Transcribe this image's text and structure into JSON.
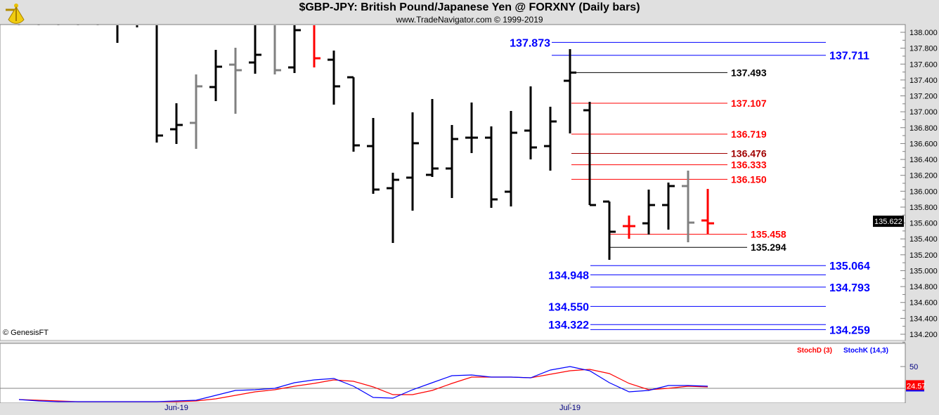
{
  "header": {
    "title": "$GBP-JPY:  British Pound/Japanese Yen @ FORXNY  (Daily bars)",
    "subtitle": "www.TradeNavigator.com © 1999-2019",
    "copyright": "© GenesisFT"
  },
  "colors": {
    "up": "#000000",
    "down": "#ff0000",
    "neutral": "#808080",
    "blue": "#0000ff",
    "red": "#ff0000",
    "darkred": "#a00000",
    "black": "#000000"
  },
  "chart_data": {
    "type": "ohlc",
    "title": "$GBP-JPY:  British Pound/Japanese Yen @ FORXNY  (Daily bars)",
    "y_axis": {
      "min": 134.2,
      "max": 138.0,
      "step": 0.2,
      "ticks": [
        "138.000",
        "137.800",
        "137.600",
        "137.400",
        "137.200",
        "137.000",
        "136.800",
        "136.600",
        "136.400",
        "136.200",
        "136.000",
        "135.800",
        "135.600",
        "135.400",
        "135.200",
        "135.000",
        "134.800",
        "134.600",
        "134.400",
        "134.200"
      ]
    },
    "x_labels": [
      {
        "label": "Jun-19",
        "bar": 8
      },
      {
        "label": "Jul-19",
        "bar": 28
      }
    ],
    "current_price": "135.622",
    "bars": [
      {
        "o": 138.1,
        "h": 138.1,
        "l": 138.09,
        "c": 138.1,
        "color": "up"
      },
      {
        "o": 138.1,
        "h": 138.1,
        "l": 138.09,
        "c": 138.1,
        "color": "up"
      },
      {
        "o": 138.1,
        "h": 138.1,
        "l": 138.09,
        "c": 138.1,
        "color": "up"
      },
      {
        "o": 138.1,
        "h": 138.1,
        "l": 138.09,
        "c": 138.1,
        "color": "up"
      },
      {
        "o": 138.1,
        "h": 138.1,
        "l": 138.09,
        "c": 138.1,
        "color": "up"
      },
      {
        "o": 138.1,
        "h": 138.1,
        "l": 137.867,
        "c": 138.1,
        "color": "up"
      },
      {
        "o": 138.1,
        "h": 138.1,
        "l": 138.062,
        "c": 138.1,
        "color": "up"
      },
      {
        "o": 138.1,
        "h": 138.1,
        "l": 136.613,
        "c": 136.701,
        "color": "up"
      },
      {
        "o": 136.78,
        "h": 137.107,
        "l": 136.595,
        "c": 136.834,
        "color": "up"
      },
      {
        "o": 136.86,
        "h": 137.47,
        "l": 136.533,
        "c": 137.32,
        "color": "neutral"
      },
      {
        "o": 137.311,
        "h": 137.779,
        "l": 137.134,
        "c": 137.567,
        "color": "up"
      },
      {
        "o": 137.593,
        "h": 137.806,
        "l": 136.975,
        "c": 137.523,
        "color": "neutral"
      },
      {
        "o": 137.62,
        "h": 138.1,
        "l": 137.479,
        "c": 137.717,
        "color": "up"
      },
      {
        "o": 138.1,
        "h": 138.1,
        "l": 137.47,
        "c": 137.523,
        "color": "neutral"
      },
      {
        "o": 137.558,
        "h": 138.1,
        "l": 137.487,
        "c": 138.027,
        "color": "up"
      },
      {
        "o": 138.1,
        "h": 138.1,
        "l": 137.558,
        "c": 137.673,
        "color": "down"
      },
      {
        "o": 137.655,
        "h": 137.77,
        "l": 137.09,
        "c": 137.32,
        "color": "up"
      },
      {
        "o": 137.434,
        "h": 137.434,
        "l": 136.498,
        "c": 136.577,
        "color": "up"
      },
      {
        "o": 136.568,
        "h": 136.922,
        "l": 135.967,
        "c": 136.021,
        "color": "up"
      },
      {
        "o": 136.038,
        "h": 136.233,
        "l": 135.349,
        "c": 136.144,
        "color": "up"
      },
      {
        "o": 136.171,
        "h": 136.993,
        "l": 135.755,
        "c": 136.604,
        "color": "up"
      },
      {
        "o": 136.206,
        "h": 137.16,
        "l": 136.18,
        "c": 136.286,
        "color": "up"
      },
      {
        "o": 136.286,
        "h": 136.834,
        "l": 135.914,
        "c": 136.657,
        "color": "up"
      },
      {
        "o": 136.674,
        "h": 137.116,
        "l": 136.48,
        "c": 136.674,
        "color": "up"
      },
      {
        "o": 136.674,
        "h": 136.816,
        "l": 135.791,
        "c": 135.897,
        "color": "up"
      },
      {
        "o": 135.994,
        "h": 137.01,
        "l": 135.808,
        "c": 136.736,
        "color": "up"
      },
      {
        "o": 136.763,
        "h": 137.32,
        "l": 136.4,
        "c": 136.551,
        "color": "up"
      },
      {
        "o": 136.568,
        "h": 137.063,
        "l": 136.259,
        "c": 136.878,
        "color": "up"
      },
      {
        "o": 137.39,
        "h": 137.788,
        "l": 136.727,
        "c": 137.493,
        "color": "up"
      },
      {
        "o": 137.019,
        "h": 137.125,
        "l": 135.826,
        "c": 135.826,
        "color": "up"
      },
      {
        "o": 135.87,
        "h": 135.87,
        "l": 135.137,
        "c": 135.49,
        "color": "up"
      },
      {
        "o": 135.561,
        "h": 135.694,
        "l": 135.402,
        "c": 135.561,
        "color": "down"
      },
      {
        "o": 135.596,
        "h": 136.021,
        "l": 135.455,
        "c": 135.826,
        "color": "up"
      },
      {
        "o": 135.826,
        "h": 136.109,
        "l": 135.517,
        "c": 136.065,
        "color": "up"
      },
      {
        "o": 136.065,
        "h": 136.259,
        "l": 135.358,
        "c": 135.605,
        "color": "neutral"
      },
      {
        "o": 135.632,
        "h": 136.029,
        "l": 135.464,
        "c": 135.596,
        "color": "down"
      }
    ],
    "levels": [
      {
        "value": "137.873",
        "color": "blue"
      },
      {
        "value": "137.711",
        "color": "blue"
      },
      {
        "value": "137.493",
        "color": "black"
      },
      {
        "value": "137.107",
        "color": "red"
      },
      {
        "value": "136.719",
        "color": "red"
      },
      {
        "value": "136.476",
        "color": "darkred"
      },
      {
        "value": "136.333",
        "color": "red"
      },
      {
        "value": "136.150",
        "color": "red"
      },
      {
        "value": "135.458",
        "color": "red"
      },
      {
        "value": "135.294",
        "color": "black"
      },
      {
        "value": "135.064",
        "color": "blue"
      },
      {
        "value": "134.948",
        "color": "blue"
      },
      {
        "value": "134.793",
        "color": "blue"
      },
      {
        "value": "134.550",
        "color": "blue"
      },
      {
        "value": "134.322",
        "color": "blue"
      },
      {
        "value": "134.259",
        "color": "blue"
      }
    ],
    "stochastic": {
      "legend": [
        {
          "name": "StochD (3)",
          "color": "red"
        },
        {
          "name": "StochK (14,3)",
          "color": "blue"
        }
      ],
      "axis_label": "50",
      "reference": 20,
      "last_value": "24.57",
      "k": [
        4,
        2,
        1,
        1,
        1,
        1,
        1,
        1,
        2,
        3,
        10,
        17,
        18,
        20,
        28,
        32,
        34,
        23,
        7,
        6,
        18,
        28,
        38,
        39,
        36,
        36,
        35,
        46,
        51,
        45,
        28,
        15,
        17,
        24,
        24,
        23
      ],
      "d": [
        4,
        3,
        2,
        1,
        1,
        1,
        1,
        1,
        1,
        2,
        5,
        10,
        15,
        18,
        23,
        27,
        32,
        30,
        22,
        11,
        11,
        17,
        27,
        36,
        36,
        36,
        35,
        40,
        45,
        47,
        41,
        27,
        18,
        20,
        23,
        22
      ]
    }
  }
}
